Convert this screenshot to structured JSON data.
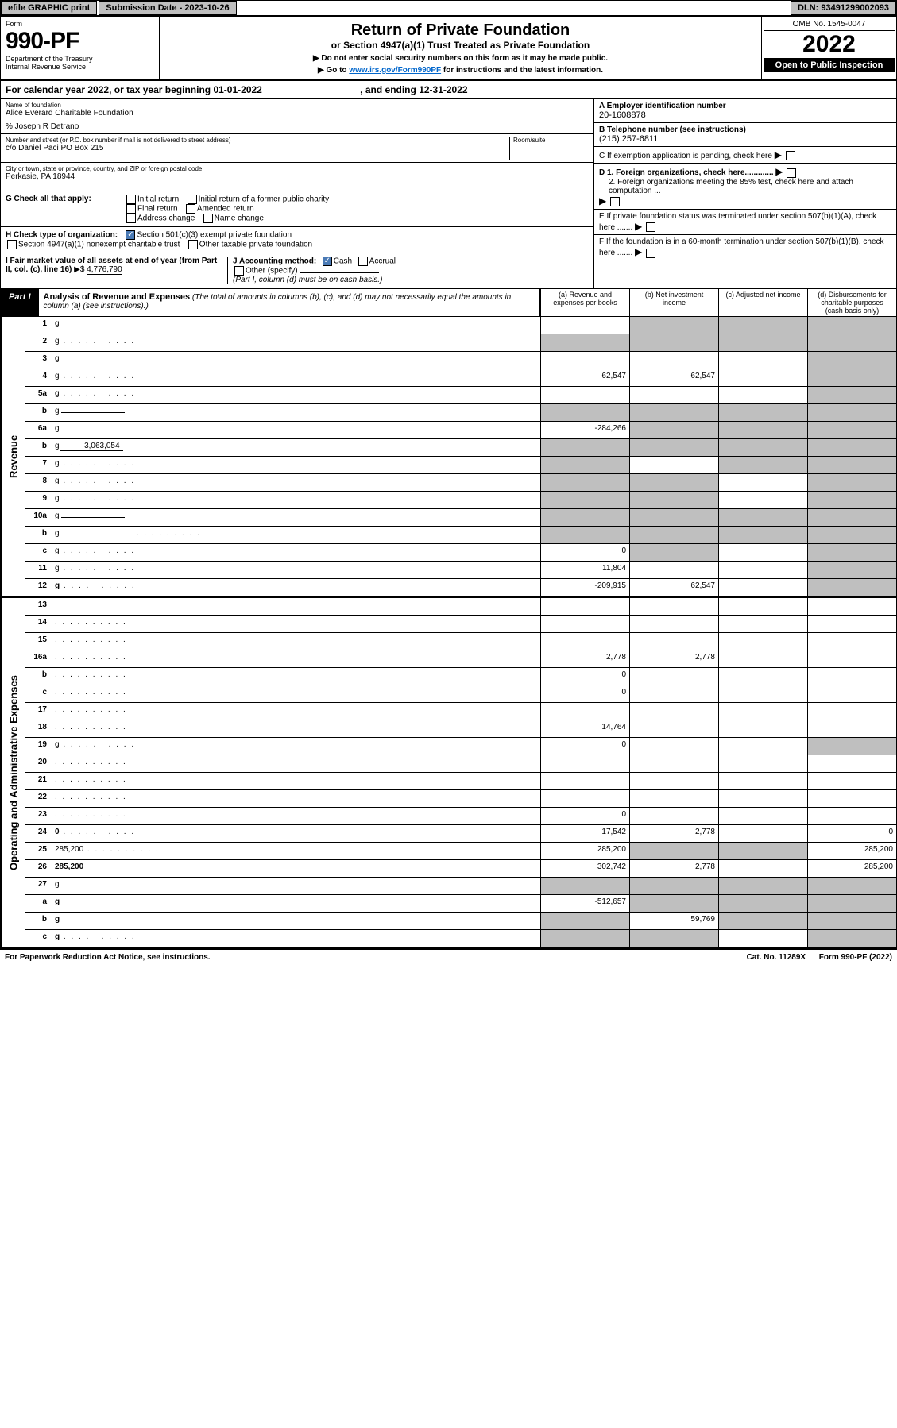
{
  "top": {
    "efile": "efile GRAPHIC print",
    "submission": "Submission Date - 2023-10-26",
    "dln": "DLN: 93491299002093"
  },
  "header": {
    "form_lbl": "Form",
    "form_no": "990-PF",
    "dept": "Department of the Treasury",
    "irs": "Internal Revenue Service",
    "title": "Return of Private Foundation",
    "subtitle": "or Section 4947(a)(1) Trust Treated as Private Foundation",
    "instr1": "▶ Do not enter social security numbers on this form as it may be made public.",
    "instr2_pre": "▶ Go to ",
    "instr2_link": "www.irs.gov/Form990PF",
    "instr2_post": " for instructions and the latest information.",
    "omb": "OMB No. 1545-0047",
    "year": "2022",
    "open": "Open to Public Inspection"
  },
  "cal_year": {
    "pre": "For calendar year 2022, or tax year beginning ",
    "begin": "01-01-2022",
    "mid": " , and ending ",
    "end": "12-31-2022"
  },
  "foundation": {
    "name_lbl": "Name of foundation",
    "name": "Alice Everard Charitable Foundation",
    "care_of": "% Joseph R Detrano",
    "addr_lbl": "Number and street (or P.O. box number if mail is not delivered to street address)",
    "addr": "c/o Daniel Paci PO Box 215",
    "room_lbl": "Room/suite",
    "city_lbl": "City or town, state or province, country, and ZIP or foreign postal code",
    "city": "Perkasie, PA  18944"
  },
  "right_info": {
    "a_lbl": "A Employer identification number",
    "a_val": "20-1608878",
    "b_lbl": "B Telephone number (see instructions)",
    "b_val": "(215) 257-6811",
    "c_lbl": "C If exemption application is pending, check here",
    "d1_lbl": "D 1. Foreign organizations, check here.............",
    "d2_lbl": "2. Foreign organizations meeting the 85% test, check here and attach computation ...",
    "e_lbl": "E  If private foundation status was terminated under section 507(b)(1)(A), check here .......",
    "f_lbl": "F  If the foundation is in a 60-month termination under section 507(b)(1)(B), check here ......."
  },
  "g": {
    "lbl": "G Check all that apply:",
    "opts": [
      "Initial return",
      "Initial return of a former public charity",
      "Final return",
      "Amended return",
      "Address change",
      "Name change"
    ]
  },
  "h": {
    "lbl": "H Check type of organization:",
    "o1": "Section 501(c)(3) exempt private foundation",
    "o2": "Section 4947(a)(1) nonexempt charitable trust",
    "o3": "Other taxable private foundation"
  },
  "i": {
    "lbl": "I Fair market value of all assets at end of year (from Part II, col. (c), line 16)",
    "val": "4,776,790"
  },
  "j": {
    "lbl": "J Accounting method:",
    "o1": "Cash",
    "o2": "Accrual",
    "o3": "Other (specify)",
    "note": "(Part I, column (d) must be on cash basis.)"
  },
  "part1": {
    "tab": "Part I",
    "title_b": "Analysis of Revenue and Expenses",
    "title_i": " (The total of amounts in columns (b), (c), and (d) may not necessarily equal the amounts in column (a) (see instructions).)",
    "cols": [
      "(a)  Revenue and expenses per books",
      "(b)  Net investment income",
      "(c)  Adjusted net income",
      "(d)  Disbursements for charitable purposes (cash basis only)"
    ]
  },
  "revenue_label": "Revenue",
  "expense_label": "Operating and Administrative Expenses",
  "rows_rev": [
    {
      "n": "1",
      "d": "g",
      "a": "",
      "b": "g",
      "c": "g"
    },
    {
      "n": "2",
      "d": "g",
      "a": "g",
      "b": "g",
      "c": "g",
      "dots": true
    },
    {
      "n": "3",
      "d": "g",
      "a": "",
      "b": "",
      "c": ""
    },
    {
      "n": "4",
      "d": "g",
      "a": "62,547",
      "b": "62,547",
      "c": "",
      "dots": true
    },
    {
      "n": "5a",
      "d": "g",
      "a": "",
      "b": "",
      "c": "",
      "dots": true
    },
    {
      "n": "b",
      "d": "g",
      "a": "g",
      "b": "g",
      "c": "g",
      "sub": true
    },
    {
      "n": "6a",
      "d": "g",
      "a": "-284,266",
      "b": "g",
      "c": "g"
    },
    {
      "n": "b",
      "d": "g",
      "a": "g",
      "b": "g",
      "c": "g",
      "sub": true,
      "subval": "3,063,054"
    },
    {
      "n": "7",
      "d": "g",
      "a": "g",
      "b": "",
      "c": "g",
      "dots": true
    },
    {
      "n": "8",
      "d": "g",
      "a": "g",
      "b": "g",
      "c": "",
      "dots": true
    },
    {
      "n": "9",
      "d": "g",
      "a": "g",
      "b": "g",
      "c": "",
      "dots": true
    },
    {
      "n": "10a",
      "d": "g",
      "a": "g",
      "b": "g",
      "c": "g",
      "sub": true
    },
    {
      "n": "b",
      "d": "g",
      "a": "g",
      "b": "g",
      "c": "g",
      "sub": true,
      "dots": true
    },
    {
      "n": "c",
      "d": "g",
      "a": "0",
      "b": "g",
      "c": "",
      "dots": true
    },
    {
      "n": "11",
      "d": "g",
      "a": "11,804",
      "b": "",
      "c": "",
      "dots": true
    },
    {
      "n": "12",
      "d": "g",
      "a": "-209,915",
      "b": "62,547",
      "c": "",
      "bold": true,
      "dots": true
    }
  ],
  "rows_exp": [
    {
      "n": "13",
      "d": "",
      "a": "",
      "b": "",
      "c": ""
    },
    {
      "n": "14",
      "d": "",
      "a": "",
      "b": "",
      "c": "",
      "dots": true
    },
    {
      "n": "15",
      "d": "",
      "a": "",
      "b": "",
      "c": "",
      "dots": true
    },
    {
      "n": "16a",
      "d": "",
      "a": "2,778",
      "b": "2,778",
      "c": "",
      "dots": true
    },
    {
      "n": "b",
      "d": "",
      "a": "0",
      "b": "",
      "c": "",
      "dots": true
    },
    {
      "n": "c",
      "d": "",
      "a": "0",
      "b": "",
      "c": "",
      "dots": true
    },
    {
      "n": "17",
      "d": "",
      "a": "",
      "b": "",
      "c": "",
      "dots": true
    },
    {
      "n": "18",
      "d": "",
      "a": "14,764",
      "b": "",
      "c": "",
      "dots": true
    },
    {
      "n": "19",
      "d": "g",
      "a": "0",
      "b": "",
      "c": "",
      "dots": true
    },
    {
      "n": "20",
      "d": "",
      "a": "",
      "b": "",
      "c": "",
      "dots": true
    },
    {
      "n": "21",
      "d": "",
      "a": "",
      "b": "",
      "c": "",
      "dots": true
    },
    {
      "n": "22",
      "d": "",
      "a": "",
      "b": "",
      "c": "",
      "dots": true
    },
    {
      "n": "23",
      "d": "",
      "a": "0",
      "b": "",
      "c": "",
      "dots": true
    },
    {
      "n": "24",
      "d": "0",
      "a": "17,542",
      "b": "2,778",
      "c": "",
      "bold": true,
      "dots": true
    },
    {
      "n": "25",
      "d": "285,200",
      "a": "285,200",
      "b": "g",
      "c": "g",
      "dots": true
    },
    {
      "n": "26",
      "d": "285,200",
      "a": "302,742",
      "b": "2,778",
      "c": "",
      "bold": true
    },
    {
      "n": "27",
      "d": "g",
      "a": "g",
      "b": "g",
      "c": "g"
    },
    {
      "n": "a",
      "d": "g",
      "a": "-512,657",
      "b": "g",
      "c": "g",
      "bold": true
    },
    {
      "n": "b",
      "d": "g",
      "a": "g",
      "b": "59,769",
      "c": "g",
      "bold": true
    },
    {
      "n": "c",
      "d": "g",
      "a": "g",
      "b": "g",
      "c": "",
      "bold": true,
      "dots": true
    }
  ],
  "footer": {
    "left": "For Paperwork Reduction Act Notice, see instructions.",
    "mid": "Cat. No. 11289X",
    "right": "Form 990-PF (2022)"
  }
}
